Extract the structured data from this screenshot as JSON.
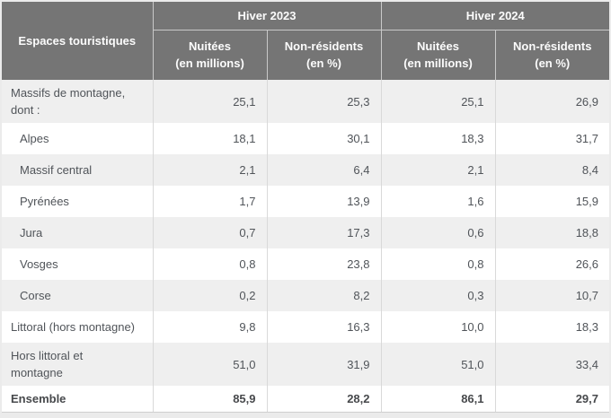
{
  "page_background": "#ebebeb",
  "colors": {
    "header_bg": "#757575",
    "header_text": "#fcfcfc",
    "header_border": "#c9c9c9",
    "row_alt_bg": "#efefef",
    "row_bg": "#ffffff",
    "body_border": "#d9d9d9",
    "body_text": "#505459"
  },
  "table": {
    "corner_header": "Espaces touristiques",
    "groups": [
      "Hiver 2023",
      "Hiver 2024"
    ],
    "sub_headers": [
      {
        "title": "Nuitées",
        "unit": "(en millions)"
      },
      {
        "title": "Non-résidents",
        "unit": "(en %)"
      },
      {
        "title": "Nuitées",
        "unit": "(en millions)"
      },
      {
        "title": "Non-résidents",
        "unit": "(en %)"
      }
    ],
    "rows": [
      {
        "label": "Massifs de montagne, dont :",
        "label_lines": [
          "Massifs de montagne,",
          "dont :"
        ],
        "values": [
          "25,1",
          "25,3",
          "25,1",
          "26,9"
        ]
      },
      {
        "label": "Alpes",
        "label_lines": [
          "Alpes"
        ],
        "values": [
          "18,1",
          "30,1",
          "18,3",
          "31,7"
        ]
      },
      {
        "label": "Massif central",
        "label_lines": [
          "Massif central"
        ],
        "values": [
          "2,1",
          "6,4",
          "2,1",
          "8,4"
        ]
      },
      {
        "label": "Pyrénées",
        "label_lines": [
          "Pyrénées"
        ],
        "values": [
          "1,7",
          "13,9",
          "1,6",
          "15,9"
        ]
      },
      {
        "label": "Jura",
        "label_lines": [
          "Jura"
        ],
        "values": [
          "0,7",
          "17,3",
          "0,6",
          "18,8"
        ]
      },
      {
        "label": "Vosges",
        "label_lines": [
          "Vosges"
        ],
        "values": [
          "0,8",
          "23,8",
          "0,8",
          "26,6"
        ]
      },
      {
        "label": "Corse",
        "label_lines": [
          "Corse"
        ],
        "values": [
          "0,2",
          "8,2",
          "0,3",
          "10,7"
        ]
      },
      {
        "label": "Littoral (hors montagne)",
        "label_lines": [
          "Littoral (hors montagne)"
        ],
        "values": [
          "9,8",
          "16,3",
          "10,0",
          "18,3"
        ]
      },
      {
        "label": "Hors littoral et montagne",
        "label_lines": [
          "Hors littoral et",
          "montagne"
        ],
        "values": [
          "51,0",
          "31,9",
          "51,0",
          "33,4"
        ]
      },
      {
        "label": "Ensemble",
        "label_lines": [
          "Ensemble"
        ],
        "values": [
          "85,9",
          "28,2",
          "86,1",
          "29,7"
        ]
      }
    ]
  },
  "chart_data": {
    "type": "table",
    "title": "",
    "columns": [
      "Espaces touristiques",
      "Hiver 2023 - Nuitées (en millions)",
      "Hiver 2023 - Non-résidents (en %)",
      "Hiver 2024 - Nuitées (en millions)",
      "Hiver 2024 - Non-résidents (en %)"
    ],
    "rows": [
      [
        "Massifs de montagne, dont :",
        25.1,
        25.3,
        25.1,
        26.9
      ],
      [
        "Alpes",
        18.1,
        30.1,
        18.3,
        31.7
      ],
      [
        "Massif central",
        2.1,
        6.4,
        2.1,
        8.4
      ],
      [
        "Pyrénées",
        1.7,
        13.9,
        1.6,
        15.9
      ],
      [
        "Jura",
        0.7,
        17.3,
        0.6,
        18.8
      ],
      [
        "Vosges",
        0.8,
        23.8,
        0.8,
        26.6
      ],
      [
        "Corse",
        0.2,
        8.2,
        0.3,
        10.7
      ],
      [
        "Littoral (hors montagne)",
        9.8,
        16.3,
        10.0,
        18.3
      ],
      [
        "Hors littoral et montagne",
        51.0,
        31.9,
        51.0,
        33.4
      ],
      [
        "Ensemble",
        85.9,
        28.2,
        86.1,
        29.7
      ]
    ]
  }
}
